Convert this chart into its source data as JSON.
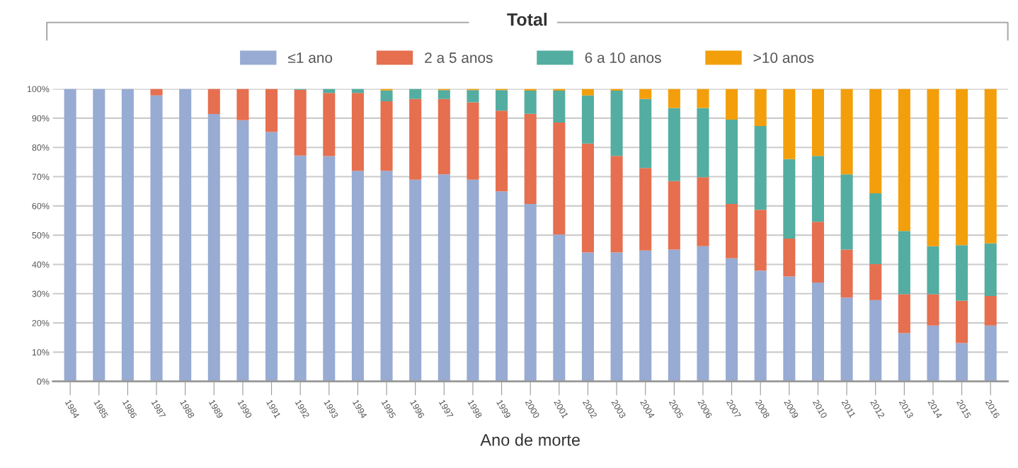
{
  "chart_data": {
    "type": "bar",
    "stacked": true,
    "title": "Total",
    "xlabel": "Ano de morte",
    "categories": [
      "1984",
      "1985",
      "1986",
      "1987",
      "1988",
      "1989",
      "1990",
      "1991",
      "1992",
      "1993",
      "1994",
      "1995",
      "1996",
      "1997",
      "1998",
      "1999",
      "2000",
      "2001",
      "2002",
      "2003",
      "2004",
      "2005",
      "2006",
      "2007",
      "2008",
      "2009",
      "2010",
      "2011",
      "2012",
      "2013",
      "2014",
      "2015",
      "2016"
    ],
    "series": [
      {
        "name": "≤1 ano",
        "color": "#97abd3",
        "values": [
          100,
          100,
          100,
          97.8,
          100,
          91.4,
          89.3,
          85.3,
          77.2,
          77,
          72,
          72,
          69,
          70.8,
          69,
          65,
          60.7,
          50.2,
          44.1,
          44.1,
          44.8,
          45.1,
          46.2,
          42.1,
          37.9,
          35.9,
          33.8,
          28.7,
          27.8,
          16.5,
          19.1,
          13.1,
          19.1
        ]
      },
      {
        "name": "2 a 5 anos",
        "color": "#e56f4f",
        "values": [
          0,
          0,
          0,
          2.2,
          0,
          8.6,
          10.7,
          14.7,
          22.5,
          21.6,
          26.6,
          23.8,
          27.6,
          25.8,
          26.4,
          27.6,
          30.8,
          38.3,
          37.2,
          33,
          28.2,
          23.4,
          23.6,
          18.6,
          20.8,
          12.9,
          20.8,
          16.4,
          12.3,
          13.3,
          10.7,
          14.5,
          10.1
        ]
      },
      {
        "name": "6 a 10 anos",
        "color": "#54ada1",
        "values": [
          0,
          0,
          0,
          0,
          0,
          0,
          0,
          0,
          0.3,
          1.4,
          1.4,
          3.7,
          3.4,
          3,
          4.2,
          7,
          7.9,
          10.9,
          16.5,
          22.3,
          23.6,
          25,
          23.7,
          28.8,
          28.6,
          27.2,
          22.5,
          25.7,
          24.2,
          21.6,
          16.4,
          19,
          18
        ]
      },
      {
        "name": ">10 anos",
        "color": "#f39f0b",
        "values": [
          0,
          0,
          0,
          0,
          0,
          0,
          0,
          0,
          0,
          0,
          0,
          0.5,
          0,
          0.4,
          0.4,
          0.4,
          0.6,
          0.6,
          2.2,
          0.6,
          3.4,
          6.5,
          6.5,
          10.5,
          12.7,
          24,
          22.9,
          29.2,
          35.7,
          48.6,
          53.8,
          53.4,
          52.8
        ]
      }
    ],
    "ylim": [
      0,
      100
    ],
    "yticks": [
      {
        "value": 0,
        "label": "0%"
      },
      {
        "value": 10,
        "label": "10%"
      },
      {
        "value": 20,
        "label": "20%"
      },
      {
        "value": 30,
        "label": "30%"
      },
      {
        "value": 40,
        "label": "40%"
      },
      {
        "value": 50,
        "label": "50%"
      },
      {
        "value": 60,
        "label": "60%"
      },
      {
        "value": 70,
        "label": "70%"
      },
      {
        "value": 80,
        "label": "80%"
      },
      {
        "value": 90,
        "label": "90%"
      },
      {
        "value": 100,
        "label": "100%"
      }
    ],
    "grid": "y",
    "legend": "top"
  }
}
